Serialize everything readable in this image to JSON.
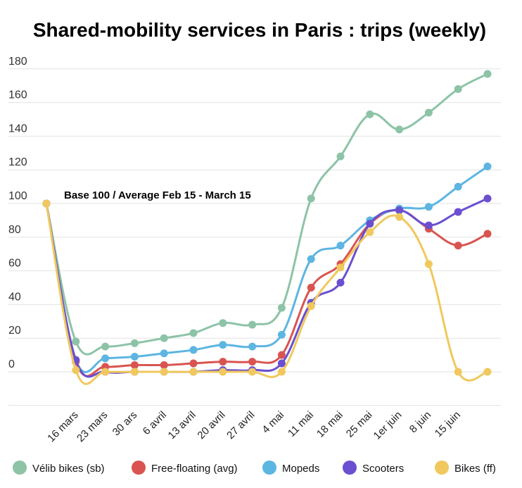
{
  "chart_data": {
    "type": "line",
    "title": "Shared-mobility services in Paris : trips (weekly)",
    "annotation": "Base 100 / Average Feb 15 - March 15",
    "xlabel": "",
    "ylabel": "",
    "ylim": [
      -20,
      180
    ],
    "yticks": [
      "0",
      "20",
      "40",
      "60",
      "80",
      "100",
      "120",
      "140",
      "160",
      "180"
    ],
    "categories": [
      "",
      "16 mars",
      "23 mars",
      "30 ars",
      "6 avril",
      "13 avril",
      "20 avril",
      "27 avril",
      "4 mai",
      "11 mai",
      "18 mai",
      "25 mai",
      "1er juin",
      "8 juin",
      "15 juin",
      ""
    ],
    "grid": true,
    "legend_position": "bottom",
    "series": [
      {
        "name": "Vélib bikes (sb)",
        "color": "#8dc3a7",
        "values": [
          100,
          18,
          15,
          17,
          20,
          23,
          29,
          28,
          38,
          103,
          128,
          153,
          144,
          154,
          168,
          177
        ]
      },
      {
        "name": "Free-floating (avg)",
        "color": "#d95450",
        "values": [
          100,
          6,
          3,
          4,
          4,
          5,
          6,
          6,
          10,
          50,
          64,
          88,
          96,
          85,
          75,
          82
        ]
      },
      {
        "name": "Mopeds",
        "color": "#5db5e2",
        "values": [
          100,
          7,
          8,
          9,
          11,
          13,
          16,
          15,
          22,
          67,
          75,
          90,
          97,
          98,
          110,
          122
        ]
      },
      {
        "name": "Scooters",
        "color": "#6a4fd0",
        "values": [
          100,
          7,
          0,
          0,
          0,
          0,
          1,
          1,
          5,
          41,
          53,
          88,
          96,
          87,
          95,
          103
        ]
      },
      {
        "name": "Bikes (ff)",
        "color": "#f0c85d",
        "values": [
          100,
          1,
          0,
          0,
          0,
          0,
          0,
          0,
          0,
          39,
          62,
          83,
          92,
          64,
          0,
          0
        ]
      }
    ]
  }
}
